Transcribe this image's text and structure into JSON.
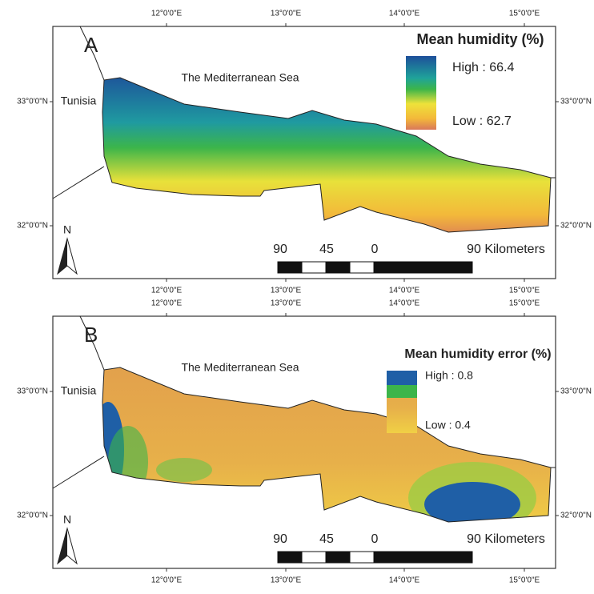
{
  "panels": [
    {
      "label": "A",
      "sea_label": "The Mediterranean Sea",
      "country_label": "Tunisia",
      "north_label": "N",
      "legend": {
        "title": "Mean humidity (%)",
        "high": "High : 66.4",
        "low": "Low : 62.7"
      },
      "scale_bar": {
        "labels": [
          "90",
          "45",
          "0",
          "90 Kilometers"
        ]
      },
      "top_ticks": [
        "12°0'0\"E",
        "13°0'0\"E",
        "14°0'0\"E",
        "15°0'0\"E"
      ],
      "bottom_ticks": [
        "12°0'0\"E",
        "13°0'0\"E",
        "14°0'0\"E",
        "15°0'0\"E"
      ],
      "left_ticks": [
        "33°0'0\"N",
        "32°0'0\"N"
      ],
      "right_ticks": [
        "33°0'0\"N",
        "32°0'0\"N"
      ]
    },
    {
      "label": "B",
      "sea_label": "The Mediterranean Sea",
      "country_label": "Tunisia",
      "north_label": "N",
      "legend": {
        "title": "Mean humidity error (%)",
        "high": "High : 0.8",
        "low": "Low : 0.4"
      },
      "scale_bar": {
        "labels": [
          "90",
          "45",
          "0",
          "90 Kilometers"
        ]
      },
      "top_ticks": [
        "12°0'0\"E",
        "13°0'0\"E",
        "14°0'0\"E",
        "15°0'0\"E"
      ],
      "bottom_ticks": [
        "12°0'0\"E",
        "13°0'0\"E",
        "14°0'0\"E",
        "15°0'0\"E"
      ],
      "left_ticks": [
        "33°0'0\"N",
        "32°0'0\"N"
      ],
      "right_ticks": [
        "33°0'0\"N",
        "32°0'0\"N"
      ]
    }
  ]
}
